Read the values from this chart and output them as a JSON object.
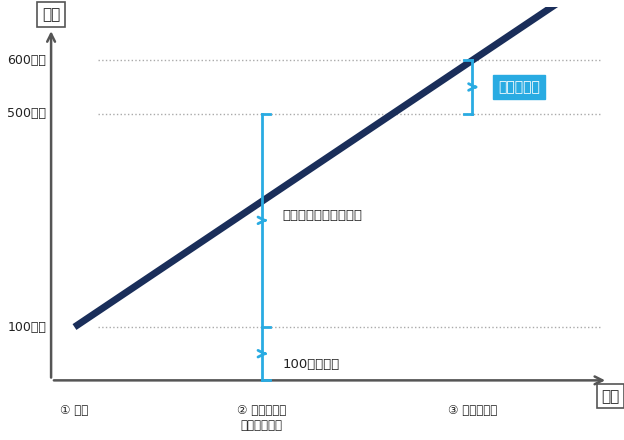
{
  "bg_color": "#ffffff",
  "line_color": "#1a2e5a",
  "cyan_color": "#29abe2",
  "dotted_color": "#aaaaaa",
  "axis_color": "#555555",
  "ylabel": "株価",
  "xlabel": "時間",
  "x_issue": 1,
  "x_exercise": 5,
  "x_transfer": 9.5,
  "y_issue": 100,
  "y_exercise": 500,
  "y_transfer": 600,
  "yticks": [
    100,
    500,
    600
  ],
  "ytick_labels": [
    "100千円",
    "500千円",
    "600千円"
  ],
  "xtick_labels": [
    "① 発行",
    "② 権利行使時\n（株式取得）",
    "③ 株式譲渡時"
  ],
  "label_income": "所得として認識しない",
  "label_payment": "100千円払込",
  "label_tax": "譲渡所得税",
  "xlim": [
    0,
    12.5
  ],
  "ylim": [
    -80,
    700
  ],
  "line_extend_x": 11.5
}
